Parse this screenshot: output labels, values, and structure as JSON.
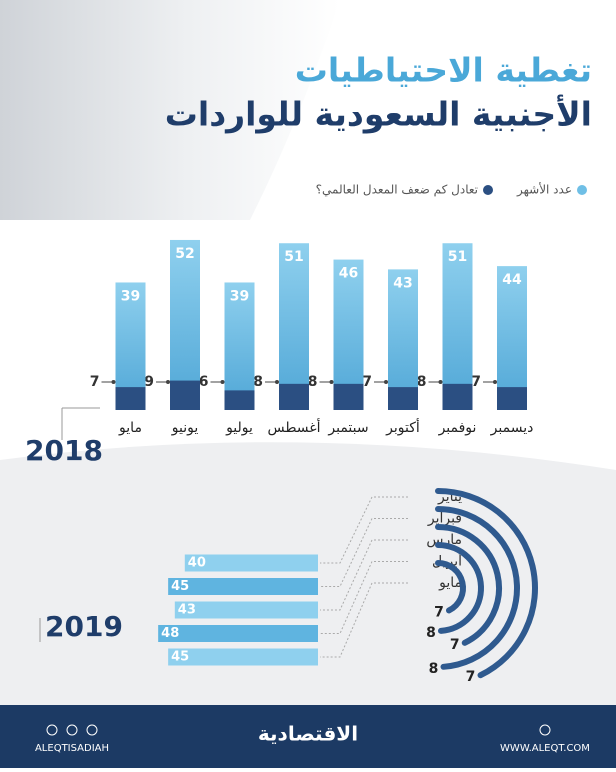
{
  "header": {
    "title_line1": "تغطية الاحتياطيات",
    "title_line2": "الأجنبية السعودية للواردات"
  },
  "chart_data": [
    {
      "type": "bar",
      "year": "2018",
      "categories": [
        "ديسمبر",
        "نوفمبر",
        "أكتوبر",
        "سبتمبر",
        "أغسطس",
        "يوليو",
        "يونيو",
        "مايو"
      ],
      "series": [
        {
          "name": "عدد الأشهر",
          "color": "#6fbfe6",
          "values": [
            44,
            51,
            43,
            46,
            51,
            39,
            52,
            39
          ]
        },
        {
          "name": "تعادل كم ضعف المعدل العالمي؟",
          "color": "#2b4f82",
          "values": [
            7,
            8,
            7,
            8,
            8,
            6,
            9,
            7
          ]
        }
      ]
    },
    {
      "type": "bar-arc",
      "year": "2019",
      "categories": [
        "يناير",
        "فبراير",
        "مارس",
        "أبريل",
        "مايو"
      ],
      "series": [
        {
          "name": "عدد الأشهر",
          "color": "#6fbfe6",
          "values": [
            40,
            45,
            43,
            48,
            45
          ]
        },
        {
          "name": "تعادل كم ضعف المعدل العالمي؟",
          "color": "#2f5a8f",
          "values": [
            7,
            8,
            7,
            8,
            7
          ]
        }
      ]
    }
  ],
  "footer": {
    "social": "ALEQTISADIAH",
    "logo": "الاقتصادية",
    "website": "WWW.ALEQT.COM"
  }
}
